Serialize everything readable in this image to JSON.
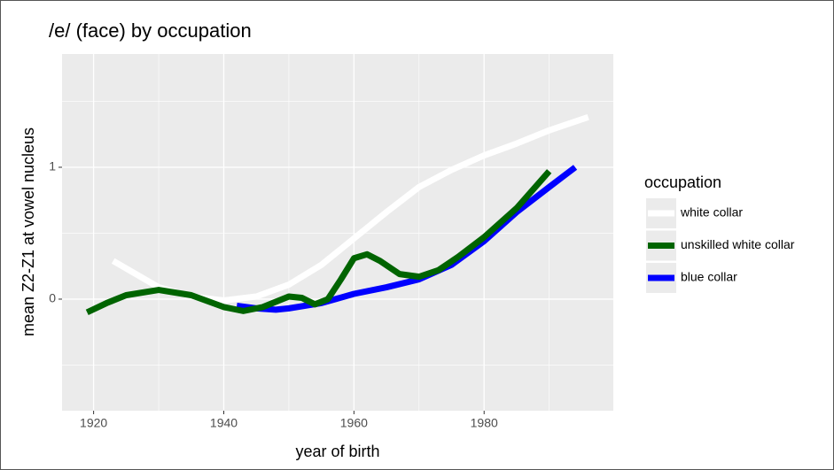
{
  "chart_data": {
    "type": "line",
    "title": "/e/ (face) by occupation",
    "x_label": "year of birth",
    "y_label": "mean Z2-Z1 at vowel nucleus",
    "legend_title": "occupation",
    "xlim": [
      1915.15,
      1999.85
    ],
    "xticks": [
      1920,
      1940,
      1960,
      1980
    ],
    "xminorticks": [
      1930,
      1950,
      1970,
      1990
    ],
    "ylim": [
      -0.846,
      1.859
    ],
    "yticks": [
      0,
      1
    ],
    "yminorticks": [
      -0.5,
      0.5,
      1.5
    ],
    "grid": true,
    "series": [
      {
        "name": "white collar",
        "color": "#ffffff",
        "x": [
          1923,
          1930,
          1935,
          1940,
          1945,
          1950,
          1955,
          1960,
          1965,
          1970,
          1975,
          1980,
          1985,
          1990,
          1996
        ],
        "values": [
          0.29,
          0.09,
          0.02,
          -0.01,
          0.02,
          0.11,
          0.26,
          0.46,
          0.66,
          0.85,
          0.98,
          1.09,
          1.18,
          1.28,
          1.38
        ]
      },
      {
        "name": "unskilled white collar",
        "color": "#006400",
        "x": [
          1919,
          1922,
          1925,
          1930,
          1935,
          1940,
          1943,
          1946,
          1950,
          1952,
          1954,
          1956,
          1958,
          1960,
          1962,
          1964,
          1967,
          1970,
          1973,
          1976,
          1980,
          1985,
          1990
        ],
        "values": [
          -0.1,
          -0.03,
          0.03,
          0.07,
          0.03,
          -0.06,
          -0.09,
          -0.06,
          0.02,
          0.01,
          -0.04,
          0.0,
          0.15,
          0.31,
          0.34,
          0.29,
          0.19,
          0.17,
          0.22,
          0.32,
          0.47,
          0.69,
          0.97
        ]
      },
      {
        "name": "blue collar",
        "color": "#0000ff",
        "x": [
          1942,
          1945,
          1948,
          1950,
          1955,
          1960,
          1965,
          1970,
          1975,
          1980,
          1985,
          1990,
          1994
        ],
        "values": [
          -0.05,
          -0.07,
          -0.08,
          -0.07,
          -0.03,
          0.04,
          0.09,
          0.15,
          0.26,
          0.44,
          0.66,
          0.85,
          1.0
        ]
      }
    ]
  }
}
